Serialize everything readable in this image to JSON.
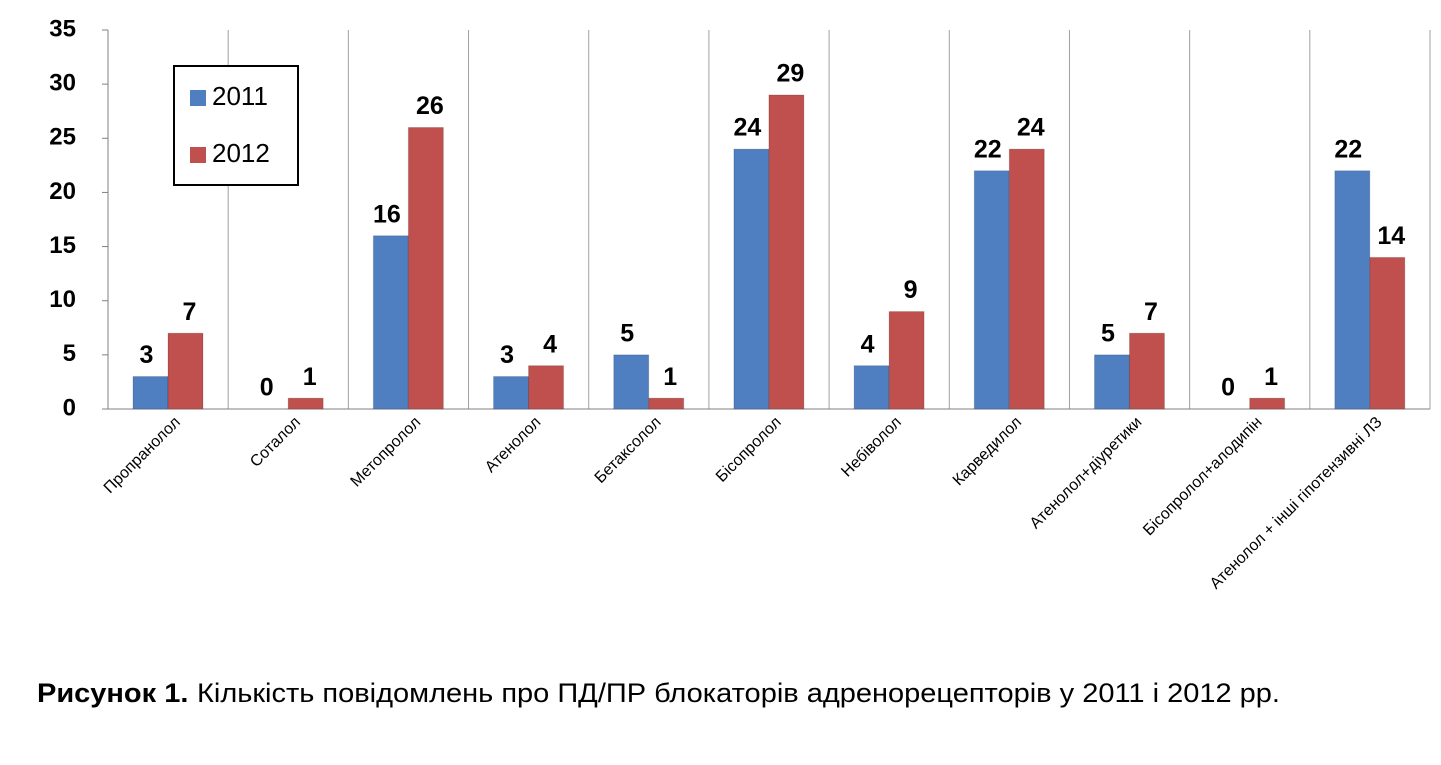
{
  "chart_data": {
    "type": "bar",
    "categories": [
      "Пропранолол",
      "Соталол",
      "Метопролол",
      "Атенолол",
      "Бетаксолол",
      "Бісопролол",
      "Небіволол",
      "Карведилол",
      "Атенолол+діуретики",
      "Бісопролол+алодипін",
      "Атенолол + інші гіпотензивні ЛЗ"
    ],
    "series": [
      {
        "name": "2011",
        "color": "#4f7fc0",
        "values": [
          3,
          0,
          16,
          3,
          5,
          24,
          4,
          22,
          5,
          0,
          22
        ]
      },
      {
        "name": "2012",
        "color": "#c0504d",
        "values": [
          7,
          1,
          26,
          4,
          1,
          29,
          9,
          24,
          7,
          1,
          14
        ]
      }
    ],
    "ylim": [
      0,
      35
    ],
    "yticks": [
      0,
      5,
      10,
      15,
      20,
      25,
      30,
      35
    ],
    "grid": true,
    "legend_position": "upper left"
  },
  "caption_label": "Рисунок 1.",
  "caption": "Кількість повідомлень про ПД/ПР блокаторів адренорецепторів у 2011 і 2012 рр."
}
